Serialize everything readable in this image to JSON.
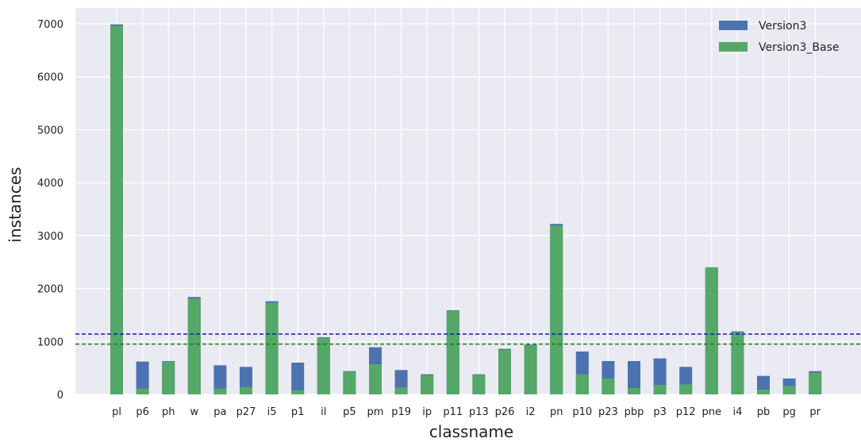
{
  "chart_data": {
    "type": "bar",
    "xlabel": "classname",
    "ylabel": "instances",
    "ylim": [
      0,
      7300
    ],
    "yticks": [
      0,
      1000,
      2000,
      3000,
      4000,
      5000,
      6000,
      7000
    ],
    "ytick_labels": [
      "0",
      "1000",
      "2000",
      "3000",
      "4000",
      "5000",
      "6000",
      "7000"
    ],
    "grid": true,
    "legend_position": "top-right",
    "categories": [
      "pl",
      "p6",
      "ph",
      "w",
      "pa",
      "p27",
      "i5",
      "p1",
      "il",
      "p5",
      "pm",
      "p19",
      "ip",
      "p11",
      "p13",
      "p26",
      "i2",
      "pn",
      "p10",
      "p23",
      "pbp",
      "p3",
      "p12",
      "pne",
      "i4",
      "pb",
      "pg",
      "pr"
    ],
    "series": [
      {
        "name": "Version3",
        "color": "#4c72b0",
        "values": [
          6990,
          620,
          630,
          1840,
          550,
          520,
          1760,
          600,
          1080,
          440,
          890,
          460,
          380,
          1590,
          380,
          860,
          940,
          3220,
          810,
          630,
          630,
          680,
          520,
          2400,
          1190,
          350,
          300,
          440
        ]
      },
      {
        "name": "Version3_Base",
        "color": "#55a868",
        "values": [
          6960,
          110,
          620,
          1810,
          110,
          140,
          1730,
          80,
          1070,
          430,
          570,
          130,
          360,
          1580,
          370,
          840,
          930,
          3190,
          380,
          300,
          120,
          180,
          190,
          2400,
          1170,
          90,
          160,
          410
        ]
      }
    ],
    "reference_lines": [
      {
        "value": 1140,
        "color": "#1a1aa0",
        "style": "dashed"
      },
      {
        "value": 950,
        "color": "#1a7a1a",
        "style": "dashed"
      }
    ],
    "colors": {
      "plot_background": "#eaeaf2",
      "grid": "#ffffff",
      "text": "#222222"
    }
  }
}
